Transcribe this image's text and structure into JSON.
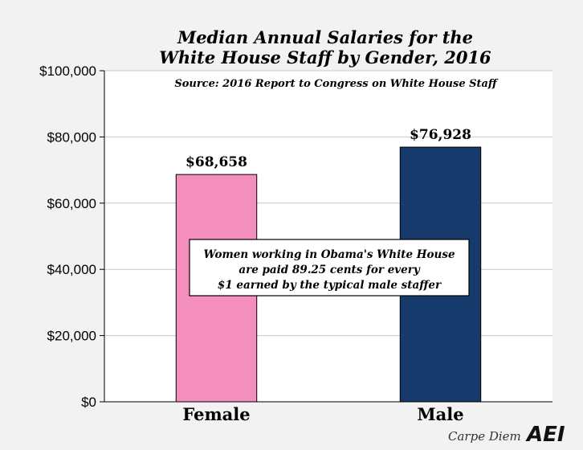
{
  "chart_data": {
    "type": "bar",
    "title_lines": [
      "Median Annual Salaries for the",
      "White House Staff by Gender, 2016"
    ],
    "subtitle": "Source: 2016 Report to Congress on White House Staff",
    "categories": [
      "Female",
      "Male"
    ],
    "values": [
      68658,
      76928
    ],
    "data_labels": [
      "$68,658",
      "$76,928"
    ],
    "bar_colors": [
      "#f48fbd",
      "#163a6b"
    ],
    "ylim": [
      0,
      100000
    ],
    "yticks": [
      0,
      20000,
      40000,
      60000,
      80000,
      100000
    ],
    "ytick_labels": [
      "$0",
      "$20,000",
      "$40,000",
      "$60,000",
      "$80,000",
      "$100,000"
    ],
    "grid": true,
    "annotation_lines": [
      "Women working in Obama's White House",
      "are paid 89.25 cents for every",
      "$1 earned by the typical male staffer"
    ]
  },
  "branding": {
    "blog_name": "Carpe Diem",
    "logo_text": "AEI"
  }
}
